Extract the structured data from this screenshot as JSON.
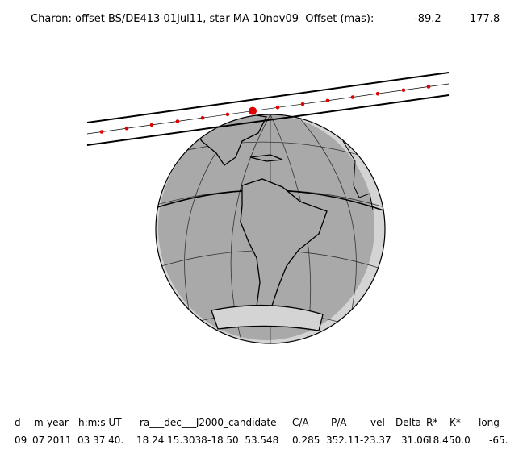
{
  "header": {
    "title": "Charon: offset BS/DE413 01Jul11, star MA 10nov09  Offset (mas):",
    "offsets": [
      "-89.2",
      "177.8"
    ]
  },
  "table": {
    "headers": [
      "d",
      "m",
      "year",
      "h:m:s UT",
      "ra___dec___J2000_candidate",
      "C/A",
      "P/A",
      "vel",
      "Delta",
      "R*",
      "K*",
      "long"
    ],
    "values": [
      "09",
      "07",
      "2011",
      "03 37 40.",
      "18 24 15.3038",
      "-18 50  53.548",
      "0.285",
      "352.11",
      "-23.37",
      "31.06",
      "18.4",
      "50.0",
      "-65."
    ]
  }
}
